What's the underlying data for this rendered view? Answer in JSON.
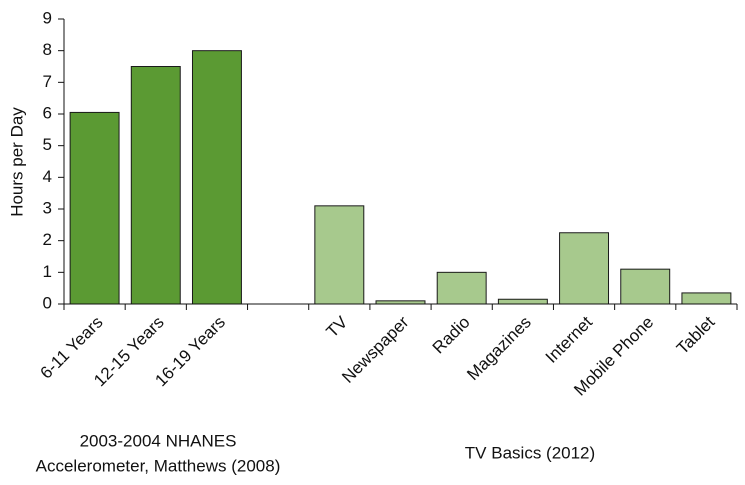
{
  "chart_data": {
    "type": "bar",
    "ylabel": "Hours per Day",
    "categories": [
      "6-11 Years",
      "12-15 Years",
      "16-19 Years",
      null,
      "TV",
      "Newspaper",
      "Radio",
      "Magazines",
      "Internet",
      "Mobile Phone",
      "Tablet"
    ],
    "values": [
      6.05,
      7.5,
      8.0,
      null,
      3.1,
      0.1,
      1.0,
      0.15,
      2.25,
      1.1,
      0.35
    ],
    "colors": [
      "#5b9a33",
      "#5b9a33",
      "#5b9a33",
      null,
      "#a7c98d",
      "#a7c98d",
      "#a7c98d",
      "#a7c98d",
      "#a7c98d",
      "#a7c98d",
      "#a7c98d"
    ],
    "ylim": [
      0,
      9
    ],
    "yticks": [
      0,
      1,
      2,
      3,
      4,
      5,
      6,
      7,
      8,
      9
    ],
    "grid": false,
    "annotations": [
      "2003-2004 NHANES",
      "Accelerometer, Matthews (2008)",
      "TV Basics (2012)"
    ]
  }
}
